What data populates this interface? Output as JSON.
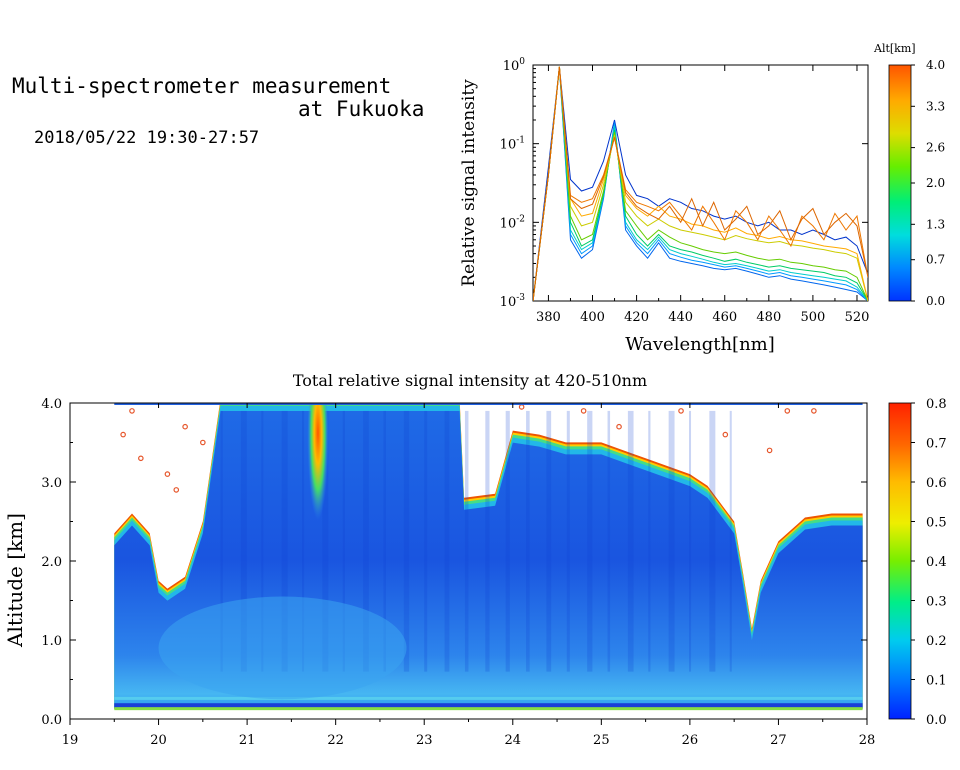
{
  "header": {
    "title_line1": "Multi-spectrometer measurement",
    "title_line2": "at Fukuoka",
    "subtitle": "2018/05/22 19:30-27:57"
  },
  "chart_data": [
    {
      "type": "line",
      "xlabel": "Wavelength[nm]",
      "ylabel": "Relative signal intensity",
      "xlim": [
        373,
        525
      ],
      "ylim": [
        0.001,
        1
      ],
      "yscale": "log",
      "x_ticks": [
        "380",
        "400",
        "420",
        "440",
        "460",
        "480",
        "500",
        "520"
      ],
      "y_ticks": [
        "10^-3",
        "10^-2",
        "10^-1",
        "10^0"
      ],
      "x": [
        373,
        380,
        385,
        390,
        395,
        400,
        405,
        410,
        415,
        420,
        425,
        430,
        435,
        440,
        445,
        450,
        455,
        460,
        465,
        470,
        475,
        480,
        485,
        490,
        495,
        500,
        505,
        510,
        515,
        520,
        525
      ],
      "series": [
        {
          "color": "#0033cc",
          "values": [
            0.001,
            0.05,
            0.95,
            0.035,
            0.025,
            0.028,
            0.06,
            0.2,
            0.04,
            0.022,
            0.02,
            0.016,
            0.02,
            0.018,
            0.015,
            0.014,
            0.012,
            0.011,
            0.012,
            0.01,
            0.009,
            0.01,
            0.008,
            0.008,
            0.007,
            0.008,
            0.007,
            0.006,
            0.0065,
            0.005,
            0.0022
          ]
        },
        {
          "color": "#0066ee",
          "values": [
            0.001,
            0.04,
            0.95,
            0.006,
            0.0035,
            0.0045,
            0.02,
            0.19,
            0.008,
            0.005,
            0.0035,
            0.0055,
            0.0035,
            0.0032,
            0.003,
            0.0028,
            0.0026,
            0.0025,
            0.0026,
            0.0024,
            0.0022,
            0.002,
            0.0021,
            0.0019,
            0.0018,
            0.0017,
            0.0016,
            0.0015,
            0.0014,
            0.0013,
            0.001
          ]
        },
        {
          "color": "#0099ff",
          "values": [
            0.001,
            0.04,
            0.95,
            0.007,
            0.004,
            0.005,
            0.021,
            0.18,
            0.009,
            0.0055,
            0.004,
            0.006,
            0.004,
            0.0036,
            0.0033,
            0.0031,
            0.0029,
            0.0027,
            0.0028,
            0.0026,
            0.0024,
            0.0022,
            0.0023,
            0.0021,
            0.002,
            0.0019,
            0.0018,
            0.0017,
            0.0016,
            0.0014,
            0.001
          ]
        },
        {
          "color": "#00cccc",
          "values": [
            0.001,
            0.04,
            0.95,
            0.008,
            0.0045,
            0.0055,
            0.022,
            0.17,
            0.01,
            0.006,
            0.0045,
            0.0065,
            0.0045,
            0.004,
            0.0037,
            0.0034,
            0.0031,
            0.0029,
            0.003,
            0.0028,
            0.0026,
            0.0024,
            0.0025,
            0.0023,
            0.0022,
            0.0021,
            0.002,
            0.0019,
            0.0018,
            0.0015,
            0.001
          ]
        },
        {
          "color": "#00cc66",
          "values": [
            0.001,
            0.04,
            0.95,
            0.01,
            0.005,
            0.006,
            0.023,
            0.15,
            0.012,
            0.007,
            0.005,
            0.007,
            0.005,
            0.0045,
            0.0042,
            0.0038,
            0.0035,
            0.0032,
            0.0034,
            0.0031,
            0.0029,
            0.0027,
            0.0028,
            0.0026,
            0.0025,
            0.0024,
            0.0023,
            0.0021,
            0.002,
            0.0017,
            0.001
          ]
        },
        {
          "color": "#66cc00",
          "values": [
            0.001,
            0.04,
            0.95,
            0.012,
            0.006,
            0.007,
            0.025,
            0.14,
            0.014,
            0.009,
            0.006,
            0.008,
            0.0065,
            0.0055,
            0.005,
            0.0045,
            0.0042,
            0.004,
            0.0042,
            0.0038,
            0.0035,
            0.0033,
            0.0034,
            0.0031,
            0.003,
            0.0028,
            0.0027,
            0.0025,
            0.0024,
            0.002,
            0.001
          ]
        },
        {
          "color": "#cccc00",
          "values": [
            0.001,
            0.04,
            0.95,
            0.016,
            0.009,
            0.01,
            0.03,
            0.13,
            0.018,
            0.012,
            0.009,
            0.011,
            0.009,
            0.008,
            0.0075,
            0.007,
            0.0065,
            0.006,
            0.0068,
            0.0062,
            0.0058,
            0.0055,
            0.0057,
            0.0052,
            0.005,
            0.0047,
            0.0045,
            0.0042,
            0.004,
            0.0035,
            0.001
          ]
        },
        {
          "color": "#ffaa00",
          "values": [
            0.001,
            0.04,
            0.95,
            0.02,
            0.012,
            0.013,
            0.035,
            0.12,
            0.022,
            0.015,
            0.012,
            0.016,
            0.012,
            0.011,
            0.0095,
            0.009,
            0.008,
            0.0075,
            0.0085,
            0.0072,
            0.0068,
            0.0062,
            0.0066,
            0.006,
            0.0058,
            0.0054,
            0.005,
            0.0048,
            0.0046,
            0.004,
            0.001
          ]
        },
        {
          "color": "#ee7700",
          "values": [
            0.001,
            0.04,
            0.95,
            0.022,
            0.018,
            0.02,
            0.04,
            0.12,
            0.026,
            0.018,
            0.016,
            0.014,
            0.018,
            0.012,
            0.008,
            0.016,
            0.01,
            0.006,
            0.014,
            0.01,
            0.006,
            0.012,
            0.008,
            0.005,
            0.012,
            0.009,
            0.006,
            0.013,
            0.008,
            0.012,
            0.002
          ]
        },
        {
          "color": "#dd6600",
          "values": [
            0.001,
            0.04,
            0.95,
            0.02,
            0.015,
            0.017,
            0.038,
            0.12,
            0.024,
            0.016,
            0.013,
            0.011,
            0.016,
            0.01,
            0.02,
            0.009,
            0.018,
            0.008,
            0.011,
            0.016,
            0.007,
            0.009,
            0.014,
            0.006,
            0.011,
            0.015,
            0.007,
            0.01,
            0.013,
            0.009,
            0.002
          ]
        }
      ],
      "colorbar": {
        "label": "Alt[km]",
        "ticks": [
          "0.0",
          "0.7",
          "1.3",
          "2.0",
          "2.6",
          "3.3",
          "4.0"
        ]
      }
    },
    {
      "type": "heatmap",
      "title": "Total relative signal intensity at 420-510nm",
      "ylabel": "Altitude [km]",
      "xlim": [
        19,
        28
      ],
      "ylim": [
        0,
        4
      ],
      "x_ticks": [
        "19",
        "20",
        "21",
        "22",
        "23",
        "24",
        "25",
        "26",
        "27",
        "28"
      ],
      "y_ticks": [
        "0.0",
        "1.0",
        "2.0",
        "3.0",
        "4.0"
      ],
      "data_time_range": [
        19.5,
        27.95
      ],
      "cloud_boundary_km": {
        "t": [
          19.5,
          19.7,
          19.9,
          20.0,
          20.1,
          20.3,
          20.5,
          20.7,
          21.0,
          21.5,
          22.0,
          22.5,
          23.0,
          23.4,
          23.45,
          23.8,
          24.0,
          24.3,
          24.6,
          25.0,
          25.5,
          26.0,
          26.2,
          26.5,
          26.6,
          26.7,
          26.8,
          27.0,
          27.3,
          27.6,
          27.95
        ],
        "km": [
          2.3,
          2.55,
          2.3,
          1.7,
          1.6,
          1.75,
          2.45,
          4.0,
          4.0,
          4.0,
          4.0,
          4.0,
          4.0,
          4.0,
          2.75,
          2.8,
          3.6,
          3.55,
          3.45,
          3.45,
          3.25,
          3.05,
          2.9,
          2.45,
          1.8,
          1.1,
          1.7,
          2.2,
          2.5,
          2.55,
          2.55
        ]
      },
      "hot_spot": {
        "time": 21.8,
        "alt_range_km": [
          1.8,
          4.0
        ],
        "value": 0.7
      },
      "colorbar": {
        "ticks": [
          "0.0",
          "0.1",
          "0.2",
          "0.3",
          "0.4",
          "0.5",
          "0.6",
          "0.7",
          "0.8"
        ],
        "range": [
          0,
          0.8
        ]
      }
    }
  ]
}
